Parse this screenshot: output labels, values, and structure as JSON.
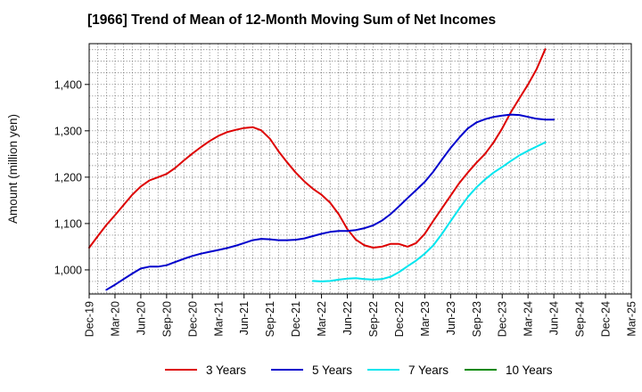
{
  "chart_data": {
    "type": "line",
    "title": "[1966]  Trend of Mean of 12-Month Moving Sum of Net Incomes",
    "ylabel": "Amount (million yen)",
    "xlabel": "",
    "ylim": [
      948,
      1488
    ],
    "yticks": [
      1000,
      1100,
      1200,
      1300,
      1400
    ],
    "ytick_labels": [
      "1,000",
      "1,100",
      "1,200",
      "1,300",
      "1,400"
    ],
    "x_start": "2019-12",
    "x_end": "2025-03",
    "xtick_labels": [
      "Dec-19",
      "Mar-20",
      "Jun-20",
      "Sep-20",
      "Dec-20",
      "Mar-21",
      "Jun-21",
      "Sep-21",
      "Dec-21",
      "Mar-22",
      "Jun-22",
      "Sep-22",
      "Dec-22",
      "Mar-23",
      "Jun-23",
      "Sep-23",
      "Dec-23",
      "Mar-24",
      "Jun-24",
      "Sep-24",
      "Dec-24",
      "Mar-25"
    ],
    "grid": true,
    "legend_position": "bottom",
    "series": [
      {
        "name": "3 Years",
        "color": "#dd0000",
        "start": "2019-12",
        "values": [
          1048,
          1073,
          1097,
          1118,
          1140,
          1162,
          1180,
          1193,
          1200,
          1207,
          1220,
          1236,
          1251,
          1265,
          1278,
          1289,
          1297,
          1302,
          1306,
          1308,
          1301,
          1283,
          1256,
          1232,
          1210,
          1191,
          1175,
          1162,
          1145,
          1120,
          1088,
          1065,
          1053,
          1048,
          1050,
          1056,
          1056,
          1050,
          1058,
          1078,
          1106,
          1133,
          1160,
          1187,
          1210,
          1231,
          1250,
          1275,
          1305,
          1340,
          1370,
          1400,
          1433,
          1476
        ]
      },
      {
        "name": "5 Years",
        "color": "#0000cc",
        "start": "2020-02",
        "values": [
          957,
          968,
          980,
          992,
          1003,
          1007,
          1007,
          1010,
          1017,
          1024,
          1030,
          1035,
          1039,
          1043,
          1047,
          1052,
          1058,
          1064,
          1067,
          1066,
          1064,
          1064,
          1065,
          1068,
          1073,
          1078,
          1082,
          1084,
          1084,
          1086,
          1090,
          1096,
          1106,
          1120,
          1137,
          1155,
          1172,
          1190,
          1212,
          1238,
          1263,
          1285,
          1305,
          1318,
          1325,
          1330,
          1333,
          1335,
          1334,
          1330,
          1326,
          1324,
          1324
        ]
      },
      {
        "name": "7 Years",
        "color": "#00e5ee",
        "start": "2022-02",
        "values": [
          976,
          975,
          976,
          979,
          981,
          982,
          980,
          979,
          980,
          985,
          995,
          1008,
          1020,
          1035,
          1053,
          1078,
          1105,
          1132,
          1157,
          1178,
          1195,
          1210,
          1222,
          1235,
          1247,
          1257,
          1266,
          1275
        ]
      },
      {
        "name": "10 Years",
        "color": "#008800",
        "start": "2019-12",
        "values": []
      }
    ]
  }
}
